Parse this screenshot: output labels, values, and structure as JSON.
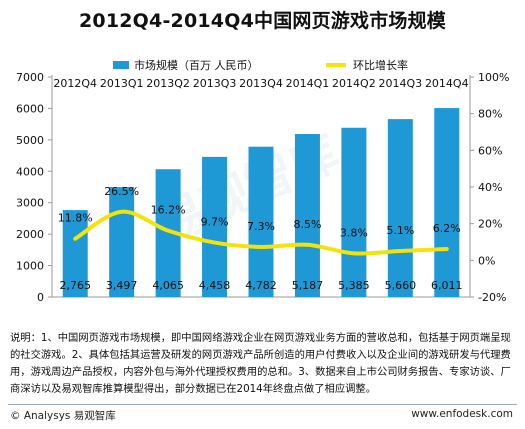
{
  "chart_data": {
    "type": "bar+line",
    "title": "2012Q4-2014Q4中国网页游戏市场规模",
    "categories": [
      "2012Q4",
      "2013Q1",
      "2013Q2",
      "2013Q3",
      "2013Q4",
      "2014Q1",
      "2014Q2",
      "2014Q3",
      "2014Q4"
    ],
    "category_labels": [
      "2012Q4",
      "2013Q1",
      "2013Q2",
      "2013Q3",
      "2013Q4",
      "2014Q1",
      "2014Q2",
      "2014Q3",
      "2014Q4"
    ],
    "series": [
      {
        "name": "市场规模（百万 人民币）",
        "type": "bar",
        "axis": "left",
        "values": [
          2765,
          3497,
          4065,
          4458,
          4782,
          5187,
          5385,
          5660,
          6011
        ],
        "value_labels": [
          "2,765",
          "3,497",
          "4,065",
          "4,458",
          "4,782",
          "5,187",
          "5,385",
          "5,660",
          "6,011"
        ],
        "color": "#1f98d6"
      },
      {
        "name": "环比增长率",
        "type": "line",
        "axis": "right",
        "values": [
          11.8,
          26.5,
          16.2,
          9.7,
          7.3,
          8.5,
          3.8,
          5.1,
          6.2
        ],
        "value_labels": [
          "11.8%",
          "26.5%",
          "16.2%",
          "9.7%",
          "7.3%",
          "8.5%",
          "3.8%",
          "5.1%",
          "6.2%"
        ],
        "color": "#f2e30a"
      }
    ],
    "ylim_left": [
      0,
      7000
    ],
    "yticks_left": [
      "0",
      "1000",
      "2000",
      "3000",
      "4000",
      "5000",
      "6000",
      "7000"
    ],
    "ylim_right": [
      -20,
      100
    ],
    "yticks_right": [
      "-20%",
      "0%",
      "20%",
      "40%",
      "60%",
      "80%",
      "100%"
    ],
    "legend_position": "top",
    "grid": false
  },
  "note": "说明：1、中国网页游戏市场规模，即中国网络游戏企业在网页游戏业务方面的营收总和，包括基于网页端呈现的社交游戏。2、具体包括其运营及研发的网页游戏产品所创造的用户付费收入以及企业间的游戏研发与代理费用，游戏周边产品授权，内容外包与海外代理授权费用的总和。3、数据来自上市公司财务报告、专家访谈、厂商深访以及易观智库推算模型得出，部分数据已在2014年终盘点做了相应调整。",
  "footer": {
    "left": "© Analysys 易观智库",
    "right": "www.enfodesk.com"
  },
  "watermark": "易观智库"
}
